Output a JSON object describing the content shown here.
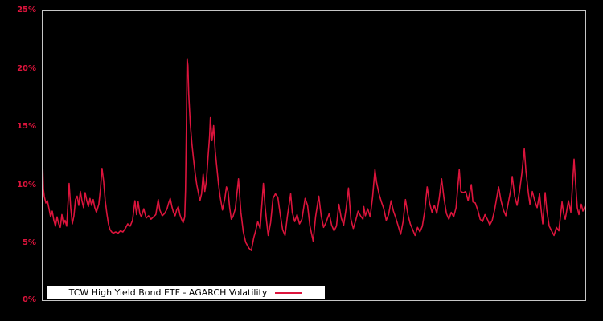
{
  "figure": {
    "background": "#000000",
    "plot_border_color": "#c6c6c6"
  },
  "axes": {
    "y_tick_labels": [
      "25%",
      "20%",
      "15%",
      "10%",
      "5%",
      "0%"
    ],
    "y_tick_color": "#dc143c",
    "x_tick_labels": []
  },
  "legend": {
    "label": "TCW High Yield Bond ETF - AGARCH Volatility",
    "background": "#ffffff",
    "text_color": "#000000",
    "position": "bottom-left-inside"
  },
  "chart_data": {
    "type": "line",
    "title": "",
    "xlabel": "",
    "ylabel": "",
    "y_unit": "percent",
    "ylim": [
      0,
      25
    ],
    "xlim": [
      0,
      676
    ],
    "grid": false,
    "background": "black",
    "legend_position": "lower left inside plot",
    "series": [
      {
        "name": "TCW High Yield Bond ETF - AGARCH Volatility",
        "color": "#dc143c",
        "points": [
          [
            0,
            11.9
          ],
          [
            1,
            9.6
          ],
          [
            2,
            9.0
          ],
          [
            4,
            8.4
          ],
          [
            6,
            8.6
          ],
          [
            8,
            7.9
          ],
          [
            10,
            7.2
          ],
          [
            12,
            7.7
          ],
          [
            14,
            6.9
          ],
          [
            16,
            6.4
          ],
          [
            18,
            7.2
          ],
          [
            20,
            6.6
          ],
          [
            22,
            6.3
          ],
          [
            24,
            7.4
          ],
          [
            26,
            6.6
          ],
          [
            28,
            6.9
          ],
          [
            30,
            6.4
          ],
          [
            33,
            10.1
          ],
          [
            35,
            8.0
          ],
          [
            37,
            6.6
          ],
          [
            39,
            7.3
          ],
          [
            41,
            8.7
          ],
          [
            43,
            9.0
          ],
          [
            45,
            8.2
          ],
          [
            47,
            9.4
          ],
          [
            49,
            8.6
          ],
          [
            51,
            8.0
          ],
          [
            53,
            9.3
          ],
          [
            55,
            8.6
          ],
          [
            57,
            8.1
          ],
          [
            59,
            8.8
          ],
          [
            61,
            8.2
          ],
          [
            63,
            8.7
          ],
          [
            65,
            8.0
          ],
          [
            67,
            7.6
          ],
          [
            70,
            8.3
          ],
          [
            72,
            9.6
          ],
          [
            74,
            11.4
          ],
          [
            76,
            10.3
          ],
          [
            78,
            8.6
          ],
          [
            80,
            7.5
          ],
          [
            82,
            6.6
          ],
          [
            84,
            6.1
          ],
          [
            86,
            5.9
          ],
          [
            88,
            5.8
          ],
          [
            91,
            5.9
          ],
          [
            94,
            5.8
          ],
          [
            97,
            6.0
          ],
          [
            100,
            5.9
          ],
          [
            103,
            6.2
          ],
          [
            106,
            6.6
          ],
          [
            109,
            6.4
          ],
          [
            112,
            6.9
          ],
          [
            115,
            8.6
          ],
          [
            117,
            7.4
          ],
          [
            119,
            8.5
          ],
          [
            121,
            7.5
          ],
          [
            123,
            7.2
          ],
          [
            126,
            7.9
          ],
          [
            129,
            7.1
          ],
          [
            132,
            7.3
          ],
          [
            135,
            7.0
          ],
          [
            138,
            7.2
          ],
          [
            141,
            7.4
          ],
          [
            144,
            8.7
          ],
          [
            146,
            7.8
          ],
          [
            149,
            7.3
          ],
          [
            152,
            7.5
          ],
          [
            155,
            7.9
          ],
          [
            157,
            8.4
          ],
          [
            159,
            8.8
          ],
          [
            161,
            8.1
          ],
          [
            163,
            7.6
          ],
          [
            165,
            7.3
          ],
          [
            167,
            7.8
          ],
          [
            169,
            8.1
          ],
          [
            171,
            7.4
          ],
          [
            173,
            7.0
          ],
          [
            175,
            6.7
          ],
          [
            177,
            7.2
          ],
          [
            178,
            9.5
          ],
          [
            179,
            14.5
          ],
          [
            180,
            20.9
          ],
          [
            181,
            20.3
          ],
          [
            182,
            17.8
          ],
          [
            184,
            15.2
          ],
          [
            186,
            13.5
          ],
          [
            188,
            12.2
          ],
          [
            190,
            11.0
          ],
          [
            192,
            10.0
          ],
          [
            194,
            9.3
          ],
          [
            196,
            8.6
          ],
          [
            198,
            9.2
          ],
          [
            200,
            10.9
          ],
          [
            202,
            9.4
          ],
          [
            204,
            10.3
          ],
          [
            206,
            12.3
          ],
          [
            208,
            14.2
          ],
          [
            209,
            15.8
          ],
          [
            211,
            13.8
          ],
          [
            213,
            15.1
          ],
          [
            215,
            12.9
          ],
          [
            217,
            11.5
          ],
          [
            219,
            10.1
          ],
          [
            221,
            9.0
          ],
          [
            224,
            7.8
          ],
          [
            227,
            8.8
          ],
          [
            229,
            9.8
          ],
          [
            231,
            9.4
          ],
          [
            233,
            8.0
          ],
          [
            235,
            7.0
          ],
          [
            237,
            7.2
          ],
          [
            240,
            7.9
          ],
          [
            244,
            10.5
          ],
          [
            247,
            7.6
          ],
          [
            250,
            5.9
          ],
          [
            253,
            5.0
          ],
          [
            257,
            4.5
          ],
          [
            260,
            4.3
          ],
          [
            263,
            5.4
          ],
          [
            265,
            5.9
          ],
          [
            268,
            6.8
          ],
          [
            271,
            6.2
          ],
          [
            275,
            10.1
          ],
          [
            277,
            8.2
          ],
          [
            279,
            6.8
          ],
          [
            281,
            5.6
          ],
          [
            284,
            6.7
          ],
          [
            287,
            8.8
          ],
          [
            290,
            9.2
          ],
          [
            293,
            8.9
          ],
          [
            296,
            7.4
          ],
          [
            299,
            6.1
          ],
          [
            302,
            5.6
          ],
          [
            305,
            7.3
          ],
          [
            309,
            9.2
          ],
          [
            311,
            7.6
          ],
          [
            314,
            6.8
          ],
          [
            317,
            7.4
          ],
          [
            320,
            6.6
          ],
          [
            323,
            7.0
          ],
          [
            327,
            8.8
          ],
          [
            330,
            8.2
          ],
          [
            333,
            6.4
          ],
          [
            337,
            5.1
          ],
          [
            340,
            7.2
          ],
          [
            344,
            9.0
          ],
          [
            347,
            7.3
          ],
          [
            350,
            6.3
          ],
          [
            353,
            6.7
          ],
          [
            357,
            7.5
          ],
          [
            360,
            6.5
          ],
          [
            363,
            6.0
          ],
          [
            366,
            6.4
          ],
          [
            369,
            8.3
          ],
          [
            372,
            7.1
          ],
          [
            375,
            6.5
          ],
          [
            378,
            7.9
          ],
          [
            381,
            9.7
          ],
          [
            384,
            7.0
          ],
          [
            387,
            6.2
          ],
          [
            390,
            6.9
          ],
          [
            393,
            7.7
          ],
          [
            396,
            7.3
          ],
          [
            399,
            7.0
          ],
          [
            400,
            8.1
          ],
          [
            402,
            7.3
          ],
          [
            405,
            7.9
          ],
          [
            408,
            7.2
          ],
          [
            411,
            8.9
          ],
          [
            414,
            11.3
          ],
          [
            416,
            10.2
          ],
          [
            419,
            9.2
          ],
          [
            422,
            8.5
          ],
          [
            425,
            7.9
          ],
          [
            428,
            6.9
          ],
          [
            431,
            7.4
          ],
          [
            434,
            8.6
          ],
          [
            437,
            7.7
          ],
          [
            440,
            7.1
          ],
          [
            443,
            6.4
          ],
          [
            446,
            5.7
          ],
          [
            449,
            6.8
          ],
          [
            452,
            8.7
          ],
          [
            455,
            7.4
          ],
          [
            458,
            6.6
          ],
          [
            461,
            6.1
          ],
          [
            464,
            5.6
          ],
          [
            467,
            6.3
          ],
          [
            470,
            5.9
          ],
          [
            473,
            6.4
          ],
          [
            476,
            7.7
          ],
          [
            479,
            9.8
          ],
          [
            482,
            8.4
          ],
          [
            485,
            7.6
          ],
          [
            488,
            8.2
          ],
          [
            491,
            7.5
          ],
          [
            494,
            8.8
          ],
          [
            497,
            10.5
          ],
          [
            500,
            8.8
          ],
          [
            503,
            7.5
          ],
          [
            506,
            7.0
          ],
          [
            509,
            7.6
          ],
          [
            512,
            7.2
          ],
          [
            515,
            8.0
          ],
          [
            519,
            11.3
          ],
          [
            521,
            9.4
          ],
          [
            524,
            9.3
          ],
          [
            527,
            9.4
          ],
          [
            530,
            8.6
          ],
          [
            534,
            10.0
          ],
          [
            536,
            8.5
          ],
          [
            539,
            8.4
          ],
          [
            542,
            7.8
          ],
          [
            545,
            7.0
          ],
          [
            548,
            6.8
          ],
          [
            551,
            7.4
          ],
          [
            554,
            7.0
          ],
          [
            557,
            6.5
          ],
          [
            560,
            6.9
          ],
          [
            563,
            7.8
          ],
          [
            566,
            9.0
          ],
          [
            568,
            9.8
          ],
          [
            571,
            8.6
          ],
          [
            574,
            7.8
          ],
          [
            577,
            7.3
          ],
          [
            580,
            8.4
          ],
          [
            583,
            9.5
          ],
          [
            585,
            10.7
          ],
          [
            588,
            9.0
          ],
          [
            591,
            8.2
          ],
          [
            594,
            9.4
          ],
          [
            597,
            11.0
          ],
          [
            600,
            13.1
          ],
          [
            602,
            11.2
          ],
          [
            605,
            9.3
          ],
          [
            607,
            8.3
          ],
          [
            610,
            9.4
          ],
          [
            613,
            8.6
          ],
          [
            616,
            8.0
          ],
          [
            619,
            9.2
          ],
          [
            621,
            7.8
          ],
          [
            623,
            6.6
          ],
          [
            626,
            9.3
          ],
          [
            628,
            7.8
          ],
          [
            631,
            6.4
          ],
          [
            634,
            6.0
          ],
          [
            637,
            5.6
          ],
          [
            640,
            6.3
          ],
          [
            643,
            6.0
          ],
          [
            647,
            8.5
          ],
          [
            649,
            7.5
          ],
          [
            651,
            7.0
          ],
          [
            655,
            8.6
          ],
          [
            658,
            7.6
          ],
          [
            662,
            12.2
          ],
          [
            664,
            10.0
          ],
          [
            666,
            8.0
          ],
          [
            668,
            7.4
          ],
          [
            671,
            8.3
          ],
          [
            673,
            7.7
          ],
          [
            676,
            8.2
          ]
        ]
      }
    ]
  }
}
